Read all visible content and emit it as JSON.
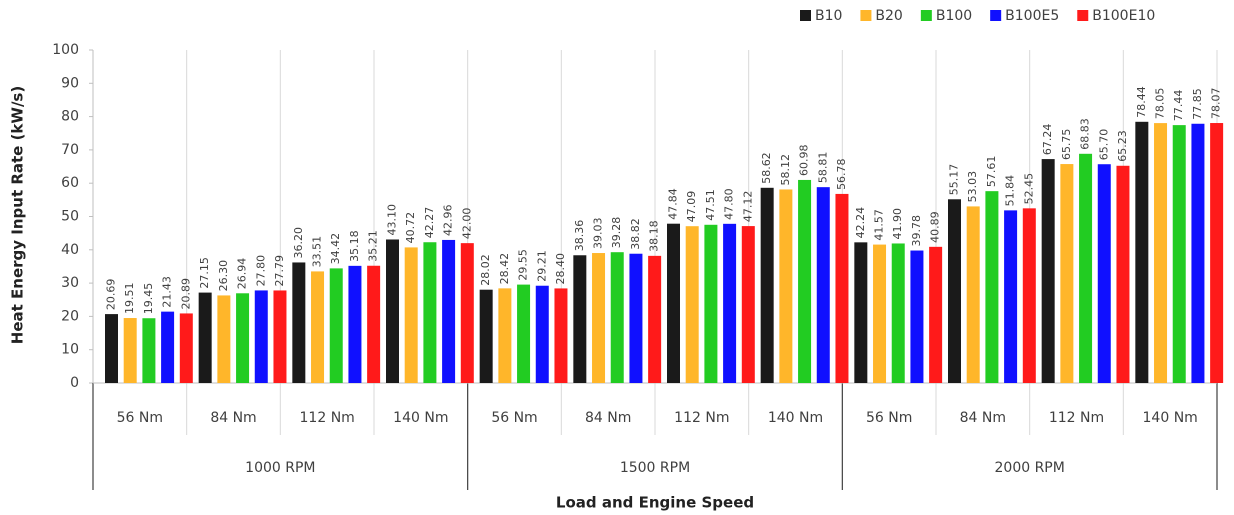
{
  "chart_data": {
    "type": "bar",
    "x_label": "Load and Engine Speed",
    "y_label": "Heat Energy Input Rate (kW/s)",
    "categories": [
      "56 Nm",
      "84 Nm",
      "112 Nm",
      "140 Nm",
      "56 Nm",
      "84 Nm",
      "112 Nm",
      "140 Nm",
      "56 Nm",
      "84 Nm",
      "112 Nm",
      "140 Nm"
    ],
    "category_groups": [
      "1000 RPM",
      "1500 RPM",
      "2000 RPM"
    ],
    "ylim": [
      0,
      100
    ],
    "yticks": [
      0,
      10,
      20,
      30,
      40,
      50,
      60,
      70,
      80,
      90,
      100
    ],
    "legend_position": "top-right",
    "series": [
      {
        "name": "B10",
        "color": "#1a1a1a",
        "values": [
          20.69,
          27.15,
          36.2,
          43.1,
          28.02,
          38.36,
          47.84,
          58.62,
          42.24,
          55.17,
          67.24,
          78.44
        ],
        "value_labels": [
          "20.69",
          "27.15",
          "36.20",
          "43.10",
          "28.02",
          "38.36",
          "47.84",
          "58.62",
          "42.24",
          "55.17",
          "67.24",
          "78.44"
        ]
      },
      {
        "name": "B20",
        "color": "#ffb62a",
        "values": [
          19.51,
          26.3,
          33.51,
          40.72,
          28.42,
          39.03,
          47.09,
          58.12,
          41.57,
          53.03,
          65.75,
          78.05
        ],
        "value_labels": [
          "19.51",
          "26.30",
          "33.51",
          "40.72",
          "28.42",
          "39.03",
          "47.09",
          "58.12",
          "41.57",
          "53.03",
          "65.75",
          "78.05"
        ]
      },
      {
        "name": "B100",
        "color": "#22cc22",
        "values": [
          19.45,
          26.94,
          34.42,
          42.27,
          29.55,
          39.28,
          47.51,
          60.98,
          41.9,
          57.61,
          68.83,
          77.44
        ],
        "value_labels": [
          "19.45",
          "26.94",
          "34.42",
          "42.27",
          "29.55",
          "39.28",
          "47.51",
          "60.98",
          "41.90",
          "57.61",
          "68.83",
          "77.44"
        ]
      },
      {
        "name": "B100E5",
        "color": "#1010ff",
        "values": [
          21.43,
          27.8,
          35.18,
          42.96,
          29.21,
          38.82,
          47.8,
          58.81,
          39.78,
          51.84,
          65.7,
          77.85
        ],
        "value_labels": [
          "21.43",
          "27.80",
          "35.18",
          "42.96",
          "29.21",
          "38.82",
          "47.80",
          "58.81",
          "39.78",
          "51.84",
          "65.70",
          "77.85"
        ]
      },
      {
        "name": "B100E10",
        "color": "#ff1a1a",
        "values": [
          20.89,
          27.79,
          35.21,
          42.0,
          28.4,
          38.18,
          47.12,
          56.78,
          40.89,
          52.45,
          65.23,
          78.07
        ],
        "value_labels": [
          "20.89",
          "27.79",
          "35.21",
          "42.00",
          "28.40",
          "38.18",
          "47.12",
          "56.78",
          "40.89",
          "52.45",
          "65.23",
          "78.07"
        ]
      }
    ]
  }
}
